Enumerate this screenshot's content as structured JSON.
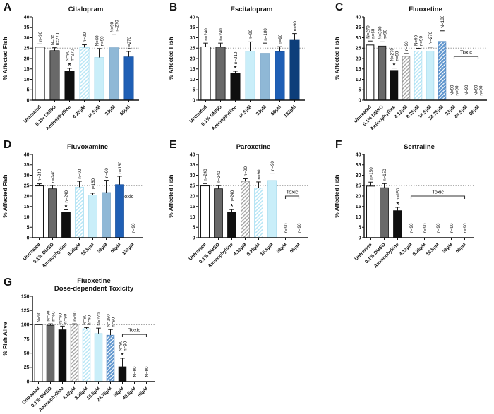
{
  "figure": {
    "background": "#ffffff",
    "yaxis_label_affected": "% Affected Fish",
    "yaxis_label_alive": "% Fish Alive",
    "toxic_label": "Toxic",
    "sig_marker": "*"
  },
  "palette": {
    "white": "#ffffff",
    "gray": "#696969",
    "black": "#0f0f0f",
    "cyan": "#c9eef9",
    "steelblue": "#8fb8d6",
    "blue": "#1f5fb5",
    "navy": "#0d3e7a",
    "hatch_gray_line": "#9b9b9b",
    "hatch_cyan_line": "#b5e5f5",
    "hatch_blue_bg": "#6398cf",
    "hatch_blue_line": "#ffffff",
    "axis": "#111111",
    "refline": "#909090",
    "errbar": "#1a1a1a"
  },
  "chart_data": [
    {
      "type": "bar",
      "panel": "A",
      "title": "Citalopram",
      "subtitle": null,
      "ylabel": "% Affected Fish",
      "ymax": 40,
      "ystep": 5,
      "refline": 25,
      "grid": false,
      "bars": [
        {
          "label": "Untreated",
          "value": 25.5,
          "err": 27.0,
          "n": [
            "n=90"
          ],
          "style": "white"
        },
        {
          "label": "0.1% DMSO",
          "value": 23.8,
          "err": 25.2,
          "n": [
            "N=60",
            "n=270"
          ],
          "style": "gray"
        },
        {
          "label": "Aminophylline",
          "value": 14.0,
          "err": 15.3,
          "n": [
            "N=90",
            "n=270"
          ],
          "style": "black",
          "sig": "*"
        },
        {
          "label": "8.25µM",
          "value": 25.3,
          "err": 26.6,
          "n": [
            "n=90"
          ],
          "style": "hatch-cyan"
        },
        {
          "label": "16.5µM",
          "value": 20.5,
          "err": 24.8,
          "n": [
            "N=60",
            "n=90"
          ],
          "style": "cyan"
        },
        {
          "label": "33µM",
          "value": 25.2,
          "err": 31.4,
          "n": [
            "N=90",
            "n=270"
          ],
          "style": "steelblue"
        },
        {
          "label": "66µM",
          "value": 20.8,
          "err": 23.4,
          "n": [
            "n=270"
          ],
          "style": "blue"
        }
      ],
      "toxic": null
    },
    {
      "type": "bar",
      "panel": "B",
      "title": "Escitalopram",
      "subtitle": null,
      "ylabel": "% Affected Fish",
      "ymax": 40,
      "ystep": 5,
      "refline": 25,
      "grid": false,
      "bars": [
        {
          "label": "Untreated",
          "value": 25.6,
          "err": 27.4,
          "n": [
            "n=240"
          ],
          "style": "white"
        },
        {
          "label": "0.1% DMSO",
          "value": 25.5,
          "err": 27.4,
          "n": [
            "n=240"
          ],
          "style": "gray"
        },
        {
          "label": "Aminophylline",
          "value": 13.0,
          "err": 13.9,
          "n": [
            "n=210"
          ],
          "style": "black",
          "sig": "*"
        },
        {
          "label": "16.5µM",
          "value": 23.5,
          "err": 28.0,
          "n": [
            "n=90"
          ],
          "style": "cyan"
        },
        {
          "label": "33µM",
          "value": 22.5,
          "err": 27.4,
          "n": [
            "n=180"
          ],
          "style": "steelblue"
        },
        {
          "label": "66µM",
          "value": 23.3,
          "err": 25.7,
          "n": [
            "n=90"
          ],
          "style": "blue"
        },
        {
          "label": "132µM",
          "value": 28.8,
          "err": 32.0,
          "n": [
            "n=90"
          ],
          "style": "navy"
        }
      ],
      "toxic": null
    },
    {
      "type": "bar",
      "panel": "C",
      "title": "Fluoxetine",
      "subtitle": null,
      "ylabel": "% Affected Fish",
      "ymax": 40,
      "ystep": 5,
      "refline": 25,
      "grid": false,
      "bars": [
        {
          "label": "Untreated",
          "value": 26.5,
          "err": 28.4,
          "n": [
            "N=270",
            "n=60"
          ],
          "style": "white"
        },
        {
          "label": "0.1% DMSO",
          "value": 26.0,
          "err": 28.0,
          "n": [
            "N=330",
            "n=90"
          ],
          "style": "gray"
        },
        {
          "label": "Aminophylline",
          "value": 14.3,
          "err": 15.4,
          "n": [
            "N=270",
            "n=90"
          ],
          "style": "black",
          "sig": "*"
        },
        {
          "label": "4.12µM",
          "value": 21.0,
          "err": 22.4,
          "n": [
            "n=90"
          ],
          "style": "hatch-gray"
        },
        {
          "label": "8.25µM",
          "value": 23.6,
          "err": 24.9,
          "n": [
            "N=90",
            "n=90"
          ],
          "style": "hatch-cyan"
        },
        {
          "label": "16.5µM",
          "value": 23.6,
          "err": 25.5,
          "n": [
            "N=270"
          ],
          "style": "cyan"
        },
        {
          "label": "24.75µM",
          "value": 28.2,
          "err": 33.3,
          "n": [
            "N=180"
          ],
          "style": "hatch-blue"
        },
        {
          "label": "33µM",
          "value": 0,
          "err": null,
          "n": [
            "N=90",
            "n=90"
          ],
          "style": "none"
        },
        {
          "label": "49.5µM",
          "value": 0,
          "err": null,
          "n": [
            "N=90"
          ],
          "style": "none"
        },
        {
          "label": "66µM",
          "value": 0,
          "err": null,
          "n": [
            "N=90",
            "n=90"
          ],
          "style": "none"
        }
      ],
      "toxic": {
        "label": "Toxic",
        "bracket": true,
        "from": 7,
        "to": 9,
        "y": 21
      }
    },
    {
      "type": "bar",
      "panel": "D",
      "title": "Fluvoxamine",
      "subtitle": null,
      "ylabel": "% Affected Fish",
      "ymax": 40,
      "ystep": 5,
      "refline": 25,
      "grid": false,
      "bars": [
        {
          "label": "Untreated",
          "value": 24.9,
          "err": 25.9,
          "n": [
            "n=240"
          ],
          "style": "white"
        },
        {
          "label": "0.1% DMSO",
          "value": 23.5,
          "err": 25.1,
          "n": [
            "n=240"
          ],
          "style": "gray"
        },
        {
          "label": "Aminophylline",
          "value": 12.3,
          "err": 13.4,
          "n": [
            "n=240"
          ],
          "style": "black",
          "sig": "*"
        },
        {
          "label": "8.25µM",
          "value": 24.3,
          "err": 27.1,
          "n": [
            "n=90"
          ],
          "style": "hatch-cyan"
        },
        {
          "label": "16.5µM",
          "value": 20.5,
          "err": 21.4,
          "n": [
            "n=180"
          ],
          "style": "cyan"
        },
        {
          "label": "33µM",
          "value": 21.7,
          "err": 27.6,
          "n": [
            "n=90"
          ],
          "style": "steelblue"
        },
        {
          "label": "66µM",
          "value": 25.5,
          "err": 29.5,
          "n": [
            "n=180"
          ],
          "style": "blue"
        },
        {
          "label": "132µM",
          "value": 0,
          "err": null,
          "n": [
            "n=90"
          ],
          "style": "none"
        }
      ],
      "toxic": {
        "label": "Toxic",
        "bracket": false,
        "at": 6.6,
        "y": 19
      }
    },
    {
      "type": "bar",
      "panel": "E",
      "title": "Paroxetine",
      "subtitle": null,
      "ylabel": "% Affected Fish",
      "ymax": 40,
      "ystep": 5,
      "refline": 25,
      "grid": false,
      "bars": [
        {
          "label": "Untreated",
          "value": 24.9,
          "err": 26.0,
          "n": [
            "n=240"
          ],
          "style": "white"
        },
        {
          "label": "0.1% DMSO",
          "value": 23.5,
          "err": 25.0,
          "n": [
            "n=240"
          ],
          "style": "gray"
        },
        {
          "label": "Aminophylline",
          "value": 12.3,
          "err": 13.5,
          "n": [
            "n=240"
          ],
          "style": "black",
          "sig": "*"
        },
        {
          "label": "4.12µM",
          "value": 27.1,
          "err": 28.3,
          "n": [
            "n=90"
          ],
          "style": "hatch-gray"
        },
        {
          "label": "8.25µM",
          "value": 23.8,
          "err": 26.8,
          "n": [
            "n=90"
          ],
          "style": "hatch-cyan"
        },
        {
          "label": "16.5µM",
          "value": 27.5,
          "err": 31.0,
          "n": [
            "n=90"
          ],
          "style": "cyan"
        },
        {
          "label": "33µM",
          "value": 0,
          "err": null,
          "n": [
            "n=90"
          ],
          "style": "none"
        },
        {
          "label": "66µM",
          "value": 0,
          "err": null,
          "n": [
            "n=90"
          ],
          "style": "none"
        }
      ],
      "toxic": {
        "label": "Toxic",
        "bracket": true,
        "from": 6,
        "to": 7,
        "y": 20
      }
    },
    {
      "type": "bar",
      "panel": "F",
      "title": "Sertraline",
      "subtitle": null,
      "ylabel": "% Affected Fish",
      "ymax": 40,
      "ystep": 5,
      "refline": 25,
      "grid": false,
      "bars": [
        {
          "label": "Untreated",
          "value": 24.8,
          "err": 26.7,
          "n": [
            "n=150"
          ],
          "style": "white"
        },
        {
          "label": "0.1% DMSO",
          "value": 24.0,
          "err": 26.0,
          "n": [
            "n=150"
          ],
          "style": "gray"
        },
        {
          "label": "Aminophylline",
          "value": 13.0,
          "err": 14.6,
          "n": [
            "n=150"
          ],
          "style": "black",
          "sig": "*"
        },
        {
          "label": "4.12µM",
          "value": 0,
          "err": null,
          "n": [
            "n=90"
          ],
          "style": "none"
        },
        {
          "label": "8.25µM",
          "value": 0,
          "err": null,
          "n": [
            "n=90"
          ],
          "style": "none"
        },
        {
          "label": "16.5µM",
          "value": 0,
          "err": null,
          "n": [
            "n=90"
          ],
          "style": "none"
        },
        {
          "label": "33µM",
          "value": 0,
          "err": null,
          "n": [
            "n=90"
          ],
          "style": "none"
        },
        {
          "label": "66µM",
          "value": 0,
          "err": null,
          "n": [
            "n=90"
          ],
          "style": "none"
        }
      ],
      "toxic": {
        "label": "Toxic",
        "bracket": true,
        "from": 3,
        "to": 7,
        "y": 20
      }
    },
    {
      "type": "bar",
      "panel": "G",
      "title": "Fluoxetine",
      "subtitle": "Dose-dependent Toxicity",
      "ylabel": "% Fish Alive",
      "ymax": 150,
      "ystep": 25,
      "refline": 100,
      "grid": false,
      "bars": [
        {
          "label": "Untreated",
          "value": 100,
          "err": null,
          "n": [
            "N=90"
          ],
          "style": "white"
        },
        {
          "label": "0.1% DMSO",
          "value": 99,
          "err": 101.5,
          "n": [
            "N=90",
            "n=60"
          ],
          "style": "gray"
        },
        {
          "label": "Aminophylline",
          "value": 91,
          "err": 97.5,
          "n": [
            "N=90",
            "n=90"
          ],
          "style": "black"
        },
        {
          "label": "4.12µM",
          "value": 100,
          "err": 101.5,
          "n": [
            "n=90"
          ],
          "style": "hatch-gray"
        },
        {
          "label": "8.25µM",
          "value": 93,
          "err": 95,
          "n": [
            "N=90",
            "n=90"
          ],
          "style": "hatch-cyan"
        },
        {
          "label": "16.5µM",
          "value": 84.5,
          "err": 94,
          "n": [
            "N=270"
          ],
          "style": "cyan"
        },
        {
          "label": "24.75µM",
          "value": 81.5,
          "err": 91.5,
          "n": [
            "N=180",
            "n=90"
          ],
          "style": "hatch-blue"
        },
        {
          "label": "33µM",
          "value": 26,
          "err": 41,
          "n": [
            "N=90",
            "n=90"
          ],
          "style": "black",
          "sig": "*"
        },
        {
          "label": "49.5µM",
          "value": 0,
          "err": null,
          "n": [
            "N=90"
          ],
          "style": "none"
        },
        {
          "label": "66µM",
          "value": 0,
          "err": null,
          "n": [
            "N=90"
          ],
          "style": "none"
        }
      ],
      "toxic": {
        "label": "Toxic",
        "bracket": true,
        "from": 7,
        "to": 9,
        "y": 83
      }
    }
  ]
}
